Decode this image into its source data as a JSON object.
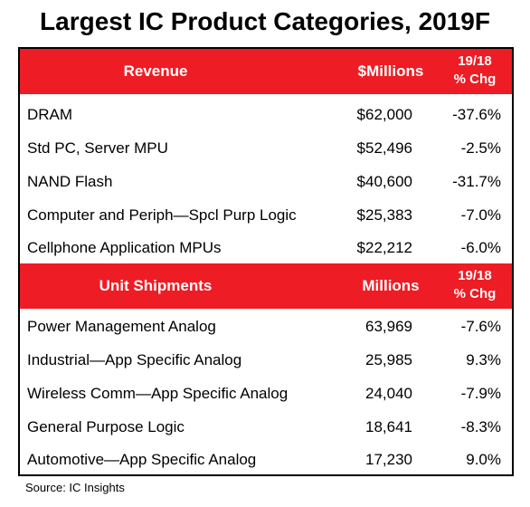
{
  "title": "Largest IC Product Categories, 2019F",
  "revenue_header": {
    "label": "Revenue",
    "value_col": "$Millions",
    "change_col": "19/18\n% Chg"
  },
  "revenue_rows": [
    {
      "name": "DRAM",
      "value": "$62,000",
      "change": "-37.6%"
    },
    {
      "name": "Std PC, Server MPU",
      "value": "$52,496",
      "change": "-2.5%"
    },
    {
      "name": "NAND Flash",
      "value": "$40,600",
      "change": "-31.7%"
    },
    {
      "name": "Computer and Periph—Spcl Purp Logic",
      "value": "$25,383",
      "change": "-7.0%"
    },
    {
      "name": "Cellphone Application MPUs",
      "value": "$22,212",
      "change": "-6.0%"
    }
  ],
  "units_header": {
    "label": "Unit Shipments",
    "value_col": "Millions",
    "change_col": "19/18\n% Chg"
  },
  "units_rows": [
    {
      "name": "Power Management Analog",
      "value": "63,969",
      "change": "-7.6%"
    },
    {
      "name": "Industrial—App Specific Analog",
      "value": "25,985",
      "change": "9.3%"
    },
    {
      "name": "Wireless Comm—App Specific Analog",
      "value": "24,040",
      "change": "-7.9%"
    },
    {
      "name": "General Purpose Logic",
      "value": "18,641",
      "change": "-8.3%"
    },
    {
      "name": "Automotive—App Specific Analog",
      "value": "17,230",
      "change": "9.0%"
    }
  ],
  "source": "Source:  IC Insights",
  "colors": {
    "header_bg": "#ee1c24",
    "header_text": "#ffffff"
  }
}
